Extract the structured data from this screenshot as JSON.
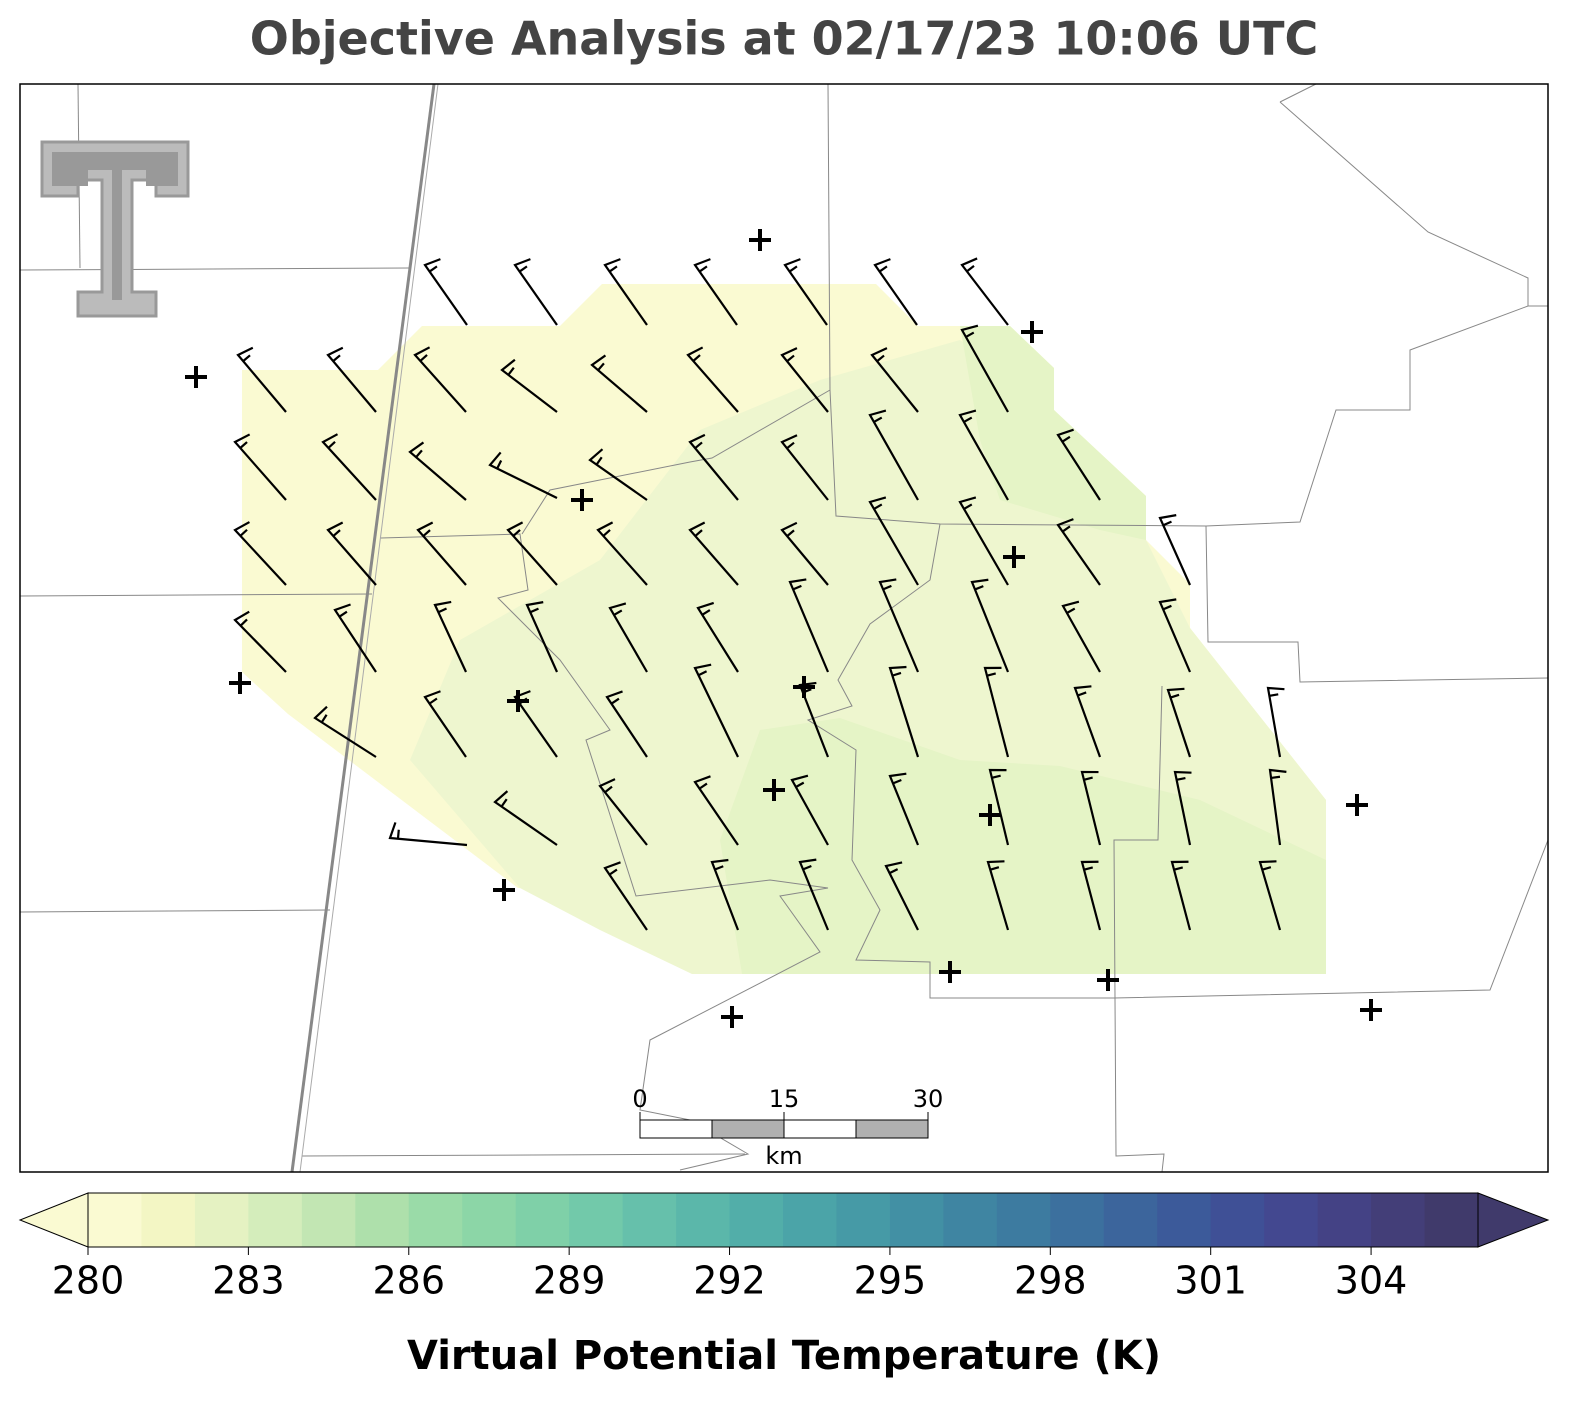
{
  "title": "Objective Analysis at 02/17/23 10:06 UTC",
  "colorbar": {
    "label": "Virtual Potential Temperature (K)",
    "lim": [
      280,
      306
    ],
    "ticks": [
      280,
      283,
      286,
      289,
      292,
      295,
      298,
      301,
      304
    ],
    "colors": [
      "#fafad2",
      "#f3f6c4",
      "#e5f2c2",
      "#d4edbb",
      "#c2e6b3",
      "#aee0ab",
      "#9adba8",
      "#8cd6a7",
      "#7fd0a8",
      "#72c9aa",
      "#66c0ab",
      "#5bb7aa",
      "#52aea9",
      "#4ba4a8",
      "#469aa6",
      "#4290a4",
      "#3f85a2",
      "#3d7ba0",
      "#3c709e",
      "#3c659c",
      "#3c5a9a",
      "#3f5096",
      "#434890",
      "#444285",
      "#433e78",
      "#403a6b"
    ]
  },
  "scale_bar": {
    "ticks": [
      0,
      15,
      30
    ],
    "unit": "km"
  }
}
